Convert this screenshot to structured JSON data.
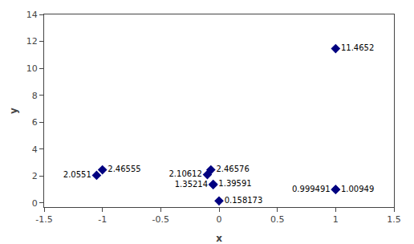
{
  "chart_data": {
    "type": "scatter",
    "x": [
      1.0,
      -1.0,
      -1.05,
      -0.07,
      -0.1,
      -0.05,
      -0.05,
      0.0,
      1.0,
      1.0
    ],
    "values": [
      11.4652,
      2.46555,
      2.0551,
      2.46576,
      2.10612,
      1.39591,
      1.35214,
      0.158173,
      1.00949,
      0.999491
    ],
    "data_labels": true,
    "color": "#000080",
    "marker": "diamond",
    "xlabel": "x",
    "ylabel": "y",
    "xlim": [
      -1.5,
      1.5
    ],
    "ylim": [
      -0.3,
      14
    ],
    "xticks": [
      -1.5,
      -1,
      -0.5,
      0,
      0.5,
      1,
      1.5
    ],
    "yticks": [
      0,
      2,
      4,
      6,
      8,
      10,
      12,
      14
    ],
    "grid": false
  }
}
